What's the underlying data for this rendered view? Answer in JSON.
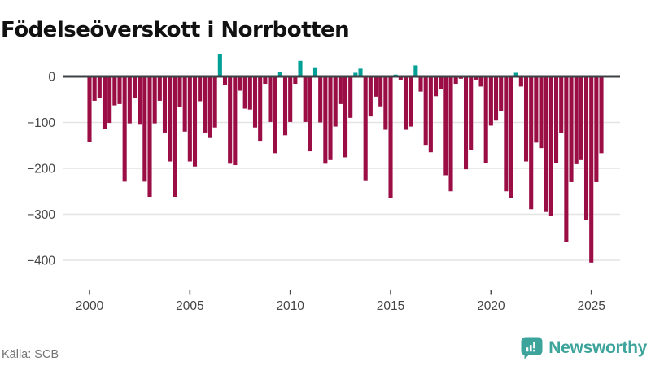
{
  "title": "Födelseöverskott i Norrbotten",
  "source": {
    "label": "Källa: SCB"
  },
  "branding": {
    "name": "Newsworthy",
    "logo_icon": "newsworthy-speech-bubble-chart-icon",
    "color": "#3da49c"
  },
  "chart_data": {
    "type": "bar",
    "title": "Födelseöverskott i Norrbotten",
    "xlabel": "",
    "ylabel": "",
    "frequency": "quarterly",
    "x_start": "2000Q1",
    "x_end": "2025Q3",
    "legend": "none",
    "grid": "horizontal",
    "ylim": [
      -430,
      55
    ],
    "yticks": [
      0,
      -100,
      -200,
      -300,
      -400
    ],
    "x_tick_labels": [
      "2000",
      "2005",
      "2010",
      "2015",
      "2020",
      "2025"
    ],
    "colors": {
      "positive": "#00a096",
      "negative": "#9a0e45",
      "zero_line": "#3d4045",
      "gridline": "#e4e4e4",
      "axis_text": "#454545"
    },
    "categories": [
      "2000Q1",
      "2000Q2",
      "2000Q3",
      "2000Q4",
      "2001Q1",
      "2001Q2",
      "2001Q3",
      "2001Q4",
      "2002Q1",
      "2002Q2",
      "2002Q3",
      "2002Q4",
      "2003Q1",
      "2003Q2",
      "2003Q3",
      "2003Q4",
      "2004Q1",
      "2004Q2",
      "2004Q3",
      "2004Q4",
      "2005Q1",
      "2005Q2",
      "2005Q3",
      "2005Q4",
      "2006Q1",
      "2006Q2",
      "2006Q3",
      "2006Q4",
      "2007Q1",
      "2007Q2",
      "2007Q3",
      "2007Q4",
      "2008Q1",
      "2008Q2",
      "2008Q3",
      "2008Q4",
      "2009Q1",
      "2009Q2",
      "2009Q3",
      "2009Q4",
      "2010Q1",
      "2010Q2",
      "2010Q3",
      "2010Q4",
      "2011Q1",
      "2011Q2",
      "2011Q3",
      "2011Q4",
      "2012Q1",
      "2012Q2",
      "2012Q3",
      "2012Q4",
      "2013Q1",
      "2013Q2",
      "2013Q3",
      "2013Q4",
      "2014Q1",
      "2014Q2",
      "2014Q3",
      "2014Q4",
      "2015Q1",
      "2015Q2",
      "2015Q3",
      "2015Q4",
      "2016Q1",
      "2016Q2",
      "2016Q3",
      "2016Q4",
      "2017Q1",
      "2017Q2",
      "2017Q3",
      "2017Q4",
      "2018Q1",
      "2018Q2",
      "2018Q3",
      "2018Q4",
      "2019Q1",
      "2019Q2",
      "2019Q3",
      "2019Q4",
      "2020Q1",
      "2020Q2",
      "2020Q3",
      "2020Q4",
      "2021Q1",
      "2021Q2",
      "2021Q3",
      "2021Q4",
      "2022Q1",
      "2022Q2",
      "2022Q3",
      "2022Q4",
      "2023Q1",
      "2023Q2",
      "2023Q3",
      "2023Q4",
      "2024Q1",
      "2024Q2",
      "2024Q3",
      "2024Q4",
      "2025Q1",
      "2025Q2",
      "2025Q3"
    ],
    "values": [
      -142,
      -53,
      -46,
      -115,
      -101,
      -63,
      -60,
      -229,
      -102,
      -47,
      -105,
      -229,
      -262,
      -102,
      -53,
      -122,
      -185,
      -262,
      -67,
      -120,
      -185,
      -196,
      -54,
      -122,
      -134,
      -111,
      48,
      -19,
      -190,
      -193,
      -31,
      -70,
      -72,
      -111,
      -140,
      -16,
      -99,
      -167,
      9,
      -128,
      -99,
      -16,
      34,
      -99,
      -163,
      20,
      -100,
      -190,
      -182,
      -109,
      -60,
      -176,
      -90,
      8,
      17,
      -226,
      -87,
      -44,
      -65,
      -116,
      -264,
      4,
      -7,
      -116,
      -109,
      24,
      -33,
      -149,
      -165,
      -43,
      -28,
      -215,
      -250,
      -16,
      -5,
      -202,
      -161,
      -7,
      -22,
      -188,
      -107,
      -96,
      -75,
      -250,
      -265,
      8,
      -22,
      -185,
      -289,
      -144,
      -156,
      -295,
      -304,
      -188,
      -123,
      -360,
      -230,
      -191,
      -182,
      -312,
      -405,
      -230,
      -167
    ]
  }
}
